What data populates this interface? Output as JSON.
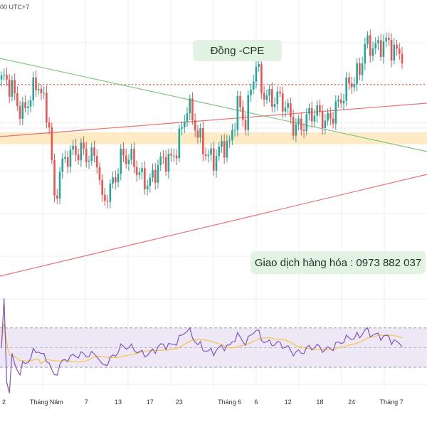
{
  "header": {
    "timezone_fragment": "00 UTC+7"
  },
  "annotations": {
    "title": "Đồng -CPE",
    "contact": "Giao dịch hàng hóa : 0973 882 037"
  },
  "colors": {
    "up": "#26a69a",
    "down": "#ef5350",
    "trend_upper": "#e57373",
    "trend_lower": "#e57373",
    "trend_green": "#81c784",
    "dotted_resistance": "#e53935",
    "support_zone": "#fdebc6",
    "rsi_line": "#7e57c2",
    "rsi_ma": "#f6c445",
    "rsi_band": "#ede7f6",
    "grid": "#eeeeee"
  },
  "chart_data": [
    {
      "type": "candlestick",
      "title": "Đồng -CPE",
      "x_tick_labels": [
        "2",
        "Tháng Năm",
        "7",
        "13",
        "17",
        "23",
        "Tháng 6",
        "6",
        "12",
        "18",
        "24",
        "Tháng 7"
      ],
      "bars": 152,
      "keyframes": [
        {
          "i": 0,
          "c": 5.02
        },
        {
          "i": 4,
          "c": 5.0
        },
        {
          "i": 8,
          "c": 4.9
        },
        {
          "i": 14,
          "c": 5.0
        },
        {
          "i": 18,
          "c": 4.85
        },
        {
          "i": 20,
          "c": 4.45
        },
        {
          "i": 22,
          "c": 4.58
        },
        {
          "i": 30,
          "c": 4.72
        },
        {
          "i": 36,
          "c": 4.62
        },
        {
          "i": 38,
          "c": 4.4
        },
        {
          "i": 40,
          "c": 4.48
        },
        {
          "i": 45,
          "c": 4.66
        },
        {
          "i": 52,
          "c": 4.58
        },
        {
          "i": 56,
          "c": 4.55
        },
        {
          "i": 64,
          "c": 4.65
        },
        {
          "i": 70,
          "c": 4.9
        },
        {
          "i": 74,
          "c": 4.75
        },
        {
          "i": 80,
          "c": 4.66
        },
        {
          "i": 86,
          "c": 4.7
        },
        {
          "i": 89,
          "c": 4.95
        },
        {
          "i": 92,
          "c": 4.85
        },
        {
          "i": 96,
          "c": 5.1
        },
        {
          "i": 98,
          "c": 4.98
        },
        {
          "i": 104,
          "c": 4.97
        },
        {
          "i": 110,
          "c": 4.8
        },
        {
          "i": 116,
          "c": 4.88
        },
        {
          "i": 122,
          "c": 4.82
        },
        {
          "i": 126,
          "c": 4.93
        },
        {
          "i": 133,
          "c": 5.02
        },
        {
          "i": 135,
          "c": 5.1
        },
        {
          "i": 137,
          "c": 5.25
        },
        {
          "i": 140,
          "c": 5.22
        },
        {
          "i": 142,
          "c": 5.18
        },
        {
          "i": 146,
          "c": 5.22
        },
        {
          "i": 151,
          "c": 5.2
        }
      ],
      "ylim": [
        3.98,
        5.38
      ],
      "support_zone": [
        4.72,
        4.78
      ],
      "dotted_resistance": 5.02
    },
    {
      "type": "line",
      "series": [
        {
          "values_from": "price",
          "period": 14
        },
        {
          "values_from": "rsi",
          "period": 14,
          "smoothing": "sma"
        }
      ],
      "ylim": [
        20,
        85
      ],
      "band": [
        30,
        70
      ],
      "midline": 50
    }
  ]
}
